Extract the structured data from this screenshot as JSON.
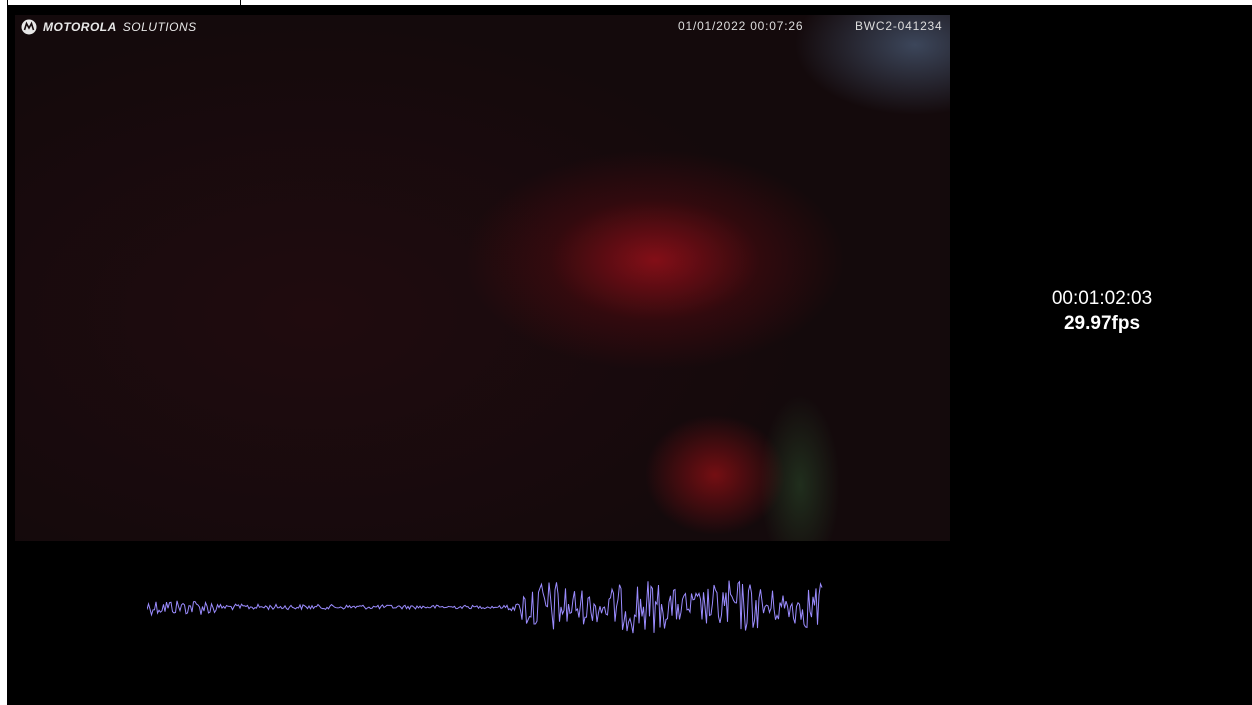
{
  "overlay": {
    "brand": "MOTOROLA",
    "brand_suffix": "SOLUTIONS",
    "timestamp": "01/01/2022 00:07:26",
    "device_id": "BWC2-041234"
  },
  "info": {
    "timecode": "00:01:02:03",
    "frame_rate": "29.97fps"
  }
}
